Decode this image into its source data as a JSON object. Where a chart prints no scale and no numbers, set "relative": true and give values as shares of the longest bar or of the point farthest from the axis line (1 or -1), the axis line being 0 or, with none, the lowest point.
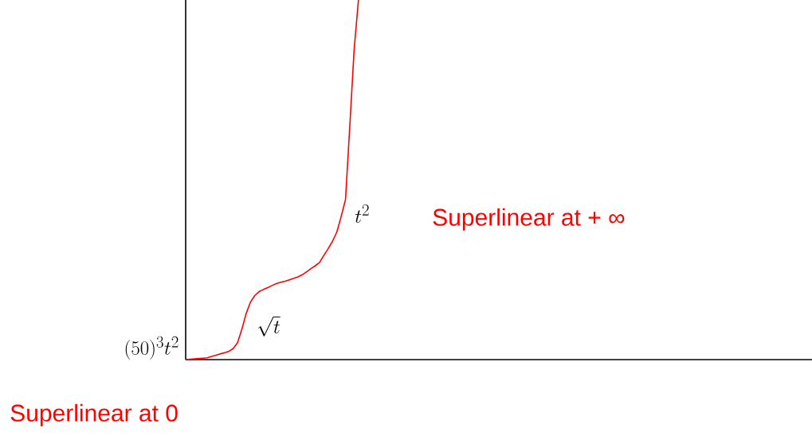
{
  "chart_data": {
    "type": "line",
    "relative": true,
    "color": "#ff0000",
    "tick_labels": false,
    "categories": [
      null,
      null,
      null,
      null,
      null,
      null,
      null,
      null,
      null,
      null,
      null,
      null,
      null,
      null,
      null,
      null,
      null,
      null,
      null,
      null,
      null,
      null,
      null,
      null,
      null,
      null,
      null,
      null,
      null,
      null,
      null,
      null,
      null,
      null,
      null,
      null,
      null,
      null,
      null,
      null,
      null,
      null,
      null,
      null,
      null,
      null,
      null,
      null,
      null,
      null,
      null,
      null,
      null,
      null,
      null,
      null,
      null,
      null,
      null,
      null,
      null,
      null,
      null,
      null,
      null,
      null,
      null,
      null,
      null,
      null,
      null,
      null,
      null,
      null,
      null,
      null,
      null,
      null,
      null,
      null,
      null,
      null,
      null,
      null,
      null,
      null,
      null,
      null,
      null,
      null,
      null,
      null,
      null,
      null,
      null,
      null,
      null,
      null,
      null,
      null,
      null,
      null,
      null,
      null,
      null,
      null,
      null,
      null,
      null,
      null,
      null,
      null,
      null,
      null,
      null,
      null,
      null,
      null,
      null,
      null,
      null,
      null,
      null,
      null,
      null,
      null,
      null,
      null,
      null,
      null,
      null,
      null,
      null,
      null,
      null,
      null,
      null,
      null,
      null,
      null,
      null,
      null,
      null,
      null,
      null,
      null
    ],
    "values": [
      0,
      0.001,
      0.002,
      0.003,
      0.004,
      0.005,
      0.009,
      0.012,
      0.016,
      0.019,
      0.023,
      0.031,
      0.047,
      0.084,
      0.128,
      0.16,
      0.178,
      0.189,
      0.195,
      0.2,
      0.206,
      0.211,
      0.215,
      0.218,
      0.222,
      0.226,
      0.23,
      0.236,
      0.244,
      0.253,
      0.261,
      0.27,
      0.29,
      0.309,
      0.329,
      0.355,
      0.398,
      0.445,
      0.65,
      0.862,
      1.0,
      null,
      null,
      null,
      null,
      null,
      null,
      null,
      null,
      null,
      null,
      null,
      null,
      null,
      null,
      null,
      null,
      null,
      null,
      null,
      null,
      null,
      null,
      null,
      null,
      null,
      null,
      null,
      null,
      null,
      null,
      null,
      null,
      null,
      null,
      null,
      null,
      null,
      null,
      null,
      null,
      null,
      null,
      null,
      null,
      null,
      null,
      null,
      null,
      null,
      null,
      null,
      null,
      null,
      null,
      null,
      null,
      null,
      null,
      null,
      null,
      null,
      null,
      null,
      null,
      null,
      null,
      null,
      null,
      null,
      null,
      null,
      null,
      null,
      null,
      null,
      null,
      null,
      null,
      null,
      null,
      null,
      null,
      null,
      null,
      null,
      null,
      null,
      null,
      null,
      null,
      null,
      null,
      null,
      null,
      null,
      null,
      null,
      null,
      null,
      null,
      null,
      null,
      null,
      null,
      null
    ],
    "annotations": [
      "(50)^3t^2",
      "\\sqrt{t}",
      "t^2",
      "Superlinear at + ∞",
      "Superlinear at 0"
    ]
  }
}
